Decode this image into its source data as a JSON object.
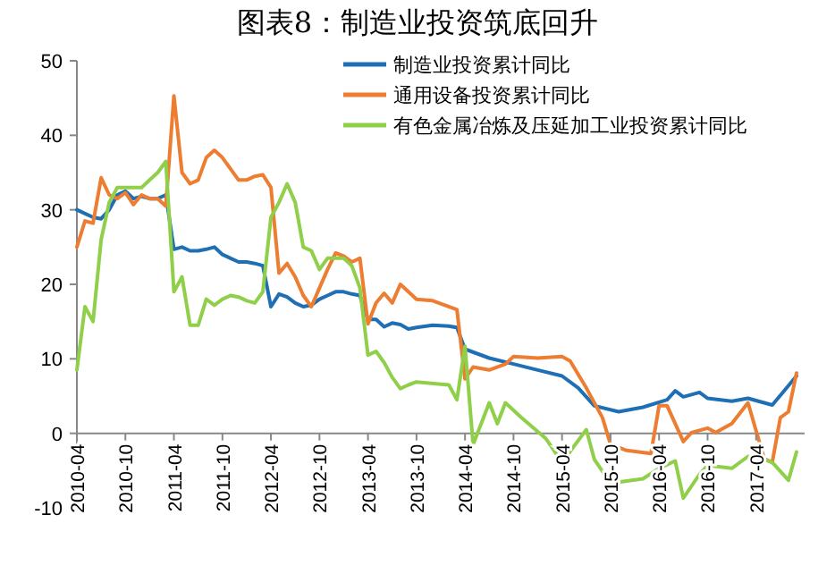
{
  "chart_data": {
    "type": "line",
    "title": "图表8：制造业投资筑底回升",
    "xlim": [
      "2010-04",
      "2017-10"
    ],
    "xticks": [
      {
        "value": "2010-04",
        "label": "2010-04"
      },
      {
        "value": "2010-10",
        "label": "2010-10"
      },
      {
        "value": "2011-04",
        "label": "2011-04"
      },
      {
        "value": "2011-10",
        "label": "2011-10"
      },
      {
        "value": "2012-04",
        "label": "2012-04"
      },
      {
        "value": "2012-10",
        "label": "2012-10"
      },
      {
        "value": "2013-04",
        "label": "2013-04"
      },
      {
        "value": "2013-10",
        "label": "2013-10"
      },
      {
        "value": "2014-04",
        "label": "2014-04"
      },
      {
        "value": "2014-10",
        "label": "2014-10"
      },
      {
        "value": "2015-04",
        "label": "2015-04"
      },
      {
        "value": "2015-10",
        "label": "2015-10"
      },
      {
        "value": "2016-04",
        "label": "2016-04"
      },
      {
        "value": "2016-10",
        "label": "2016-10"
      },
      {
        "value": "2017-04",
        "label": "2017-04"
      }
    ],
    "ylim": [
      -10,
      50
    ],
    "yticks": [
      -10,
      0,
      10,
      20,
      30,
      40,
      50
    ],
    "legend": "top right",
    "grid": false,
    "marker": "none",
    "line_style": "solid",
    "series": [
      {
        "name": "制造业投资累计同比",
        "color": "#1f6fb5",
        "x": [
          "2010-04",
          "2010-05",
          "2010-06",
          "2010-07",
          "2010-08",
          "2010-09",
          "2010-10",
          "2010-11",
          "2010-12",
          "2011-01",
          "2011-02",
          "2011-03",
          "2011-04",
          "2011-05",
          "2011-06",
          "2011-07",
          "2011-08",
          "2011-09",
          "2011-10",
          "2011-11",
          "2011-12",
          "2012-01",
          "2012-02",
          "2012-03",
          "2012-04",
          "2012-05",
          "2012-06",
          "2012-07",
          "2012-08",
          "2012-09",
          "2012-10",
          "2012-11",
          "2012-12",
          "2013-01",
          "2013-02",
          "2013-03",
          "2013-04",
          "2013-05",
          "2013-06",
          "2013-07",
          "2013-08",
          "2013-09",
          "2013-10",
          "2013-12",
          "2014-02",
          "2014-03",
          "2014-04",
          "2014-07",
          "2014-10",
          "2015-01",
          "2015-04",
          "2015-06",
          "2015-08",
          "2015-11",
          "2016-02",
          "2016-05",
          "2016-06",
          "2016-07",
          "2016-09",
          "2016-10",
          "2017-01",
          "2017-03",
          "2017-06",
          "2017-07",
          "2017-09"
        ],
        "values": [
          30,
          29.5,
          29,
          28.8,
          30,
          32,
          32.5,
          31.5,
          31.8,
          31.5,
          31.5,
          32,
          24.7,
          25,
          24.5,
          24.5,
          24.7,
          25,
          24,
          23.5,
          23,
          23,
          22.8,
          22.5,
          17,
          18.7,
          18.3,
          17.5,
          17,
          17.2,
          18,
          18.5,
          19,
          19,
          18.7,
          18.5,
          15.3,
          15.3,
          14.3,
          14.8,
          14.6,
          14,
          14.2,
          14.5,
          14.4,
          14.2,
          11.3,
          10.1,
          9.3,
          8.5,
          7.7,
          6.1,
          3.7,
          2.9,
          3.5,
          4.5,
          5.7,
          4.9,
          5.5,
          4.7,
          4.3,
          4.7,
          3.8,
          5.1,
          7.7
        ]
      },
      {
        "name": "通用设备投资累计同比",
        "color": "#ed7d31",
        "x": [
          "2010-04",
          "2010-05",
          "2010-06",
          "2010-07",
          "2010-08",
          "2010-09",
          "2010-10",
          "2010-11",
          "2010-12",
          "2011-01",
          "2011-02",
          "2011-03",
          "2011-04",
          "2011-05",
          "2011-06",
          "2011-07",
          "2011-08",
          "2011-09",
          "2011-10",
          "2011-11",
          "2011-12",
          "2012-01",
          "2012-02",
          "2012-03",
          "2012-04",
          "2012-05",
          "2012-06",
          "2012-07",
          "2012-08",
          "2012-09",
          "2012-10",
          "2012-11",
          "2012-12",
          "2013-01",
          "2013-02",
          "2013-03",
          "2013-04",
          "2013-05",
          "2013-06",
          "2013-07",
          "2013-08",
          "2013-09",
          "2013-10",
          "2013-12",
          "2014-03",
          "2014-04",
          "2014-05",
          "2014-07",
          "2014-09",
          "2014-10",
          "2015-01",
          "2015-04",
          "2015-05",
          "2015-07",
          "2015-09",
          "2015-10",
          "2015-12",
          "2016-03",
          "2016-04",
          "2016-05",
          "2016-07",
          "2016-08",
          "2016-10",
          "2016-11",
          "2017-01",
          "2017-03",
          "2017-05",
          "2017-06",
          "2017-07",
          "2017-08",
          "2017-09"
        ],
        "values": [
          25,
          28.5,
          28.2,
          34.3,
          32,
          31.5,
          32.3,
          30.7,
          32,
          31.5,
          31.5,
          30.5,
          45.3,
          35,
          33.5,
          34,
          37,
          38,
          37,
          35.5,
          34,
          34,
          34.5,
          34.7,
          33,
          21.5,
          22.8,
          21,
          18.5,
          17,
          19.5,
          22,
          24.2,
          23.8,
          23,
          23.5,
          14.7,
          17.5,
          18.8,
          17.5,
          20,
          19,
          18,
          17.8,
          16.6,
          7.3,
          8.9,
          8.5,
          9.3,
          10.3,
          10.1,
          10.3,
          9.7,
          6.1,
          2.1,
          -1.5,
          -2.3,
          -2.7,
          3.7,
          3.7,
          -1.1,
          0.1,
          0.7,
          0.1,
          1.3,
          4.1,
          -3.4,
          -3.9,
          2.1,
          2.9,
          8.1
        ]
      },
      {
        "name": "有色金属冶炼及压延加工业投资累计同比",
        "color": "#8fcf4a",
        "x": [
          "2010-04",
          "2010-05",
          "2010-06",
          "2010-07",
          "2010-08",
          "2010-09",
          "2010-10",
          "2010-11",
          "2010-12",
          "2011-01",
          "2011-02",
          "2011-03",
          "2011-04",
          "2011-05",
          "2011-06",
          "2011-07",
          "2011-08",
          "2011-09",
          "2011-10",
          "2011-11",
          "2011-12",
          "2012-01",
          "2012-02",
          "2012-03",
          "2012-04",
          "2012-05",
          "2012-06",
          "2012-07",
          "2012-08",
          "2012-09",
          "2012-10",
          "2012-11",
          "2012-12",
          "2013-01",
          "2013-02",
          "2013-03",
          "2013-04",
          "2013-05",
          "2013-06",
          "2013-07",
          "2013-08",
          "2013-09",
          "2013-10",
          "2014-02",
          "2014-03",
          "2014-04",
          "2014-05",
          "2014-07",
          "2014-08",
          "2014-09",
          "2014-11",
          "2015-02",
          "2015-04",
          "2015-07",
          "2015-08",
          "2015-10",
          "2016-02",
          "2016-04",
          "2016-06",
          "2016-07",
          "2016-09",
          "2016-10",
          "2017-01",
          "2017-03",
          "2017-05",
          "2017-06",
          "2017-08",
          "2017-09"
        ],
        "values": [
          8.5,
          17,
          15,
          26,
          31,
          33,
          33,
          33,
          33,
          34,
          35,
          36.5,
          19,
          21,
          14.5,
          14.5,
          18,
          17.2,
          18,
          18.5,
          18.3,
          17.8,
          17.5,
          19,
          29,
          31,
          33.5,
          31,
          25,
          24.5,
          22,
          23.5,
          23.5,
          23.5,
          22.5,
          19.5,
          10.5,
          11,
          9.5,
          7.5,
          6,
          6.5,
          6.9,
          6.5,
          4.5,
          11.7,
          -1.5,
          4.1,
          1.3,
          4.1,
          2.1,
          -0.7,
          -3.9,
          0.5,
          -3.5,
          -6.7,
          -6.1,
          -4.7,
          -3.7,
          -8.7,
          -5.5,
          -4.3,
          -4.7,
          -3.1,
          -3.5,
          -3.9,
          -6.3,
          -2.5
        ]
      }
    ]
  }
}
